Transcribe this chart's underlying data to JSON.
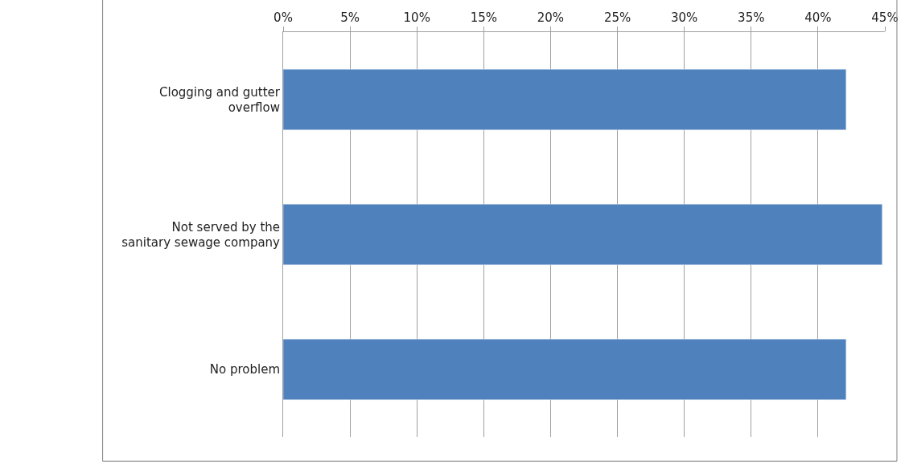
{
  "chart_data": {
    "type": "bar",
    "orientation": "horizontal",
    "categories": [
      "Clogging and gutter overflow",
      "Not served by the sanitary sewage company",
      "No problem"
    ],
    "values": [
      42.1,
      44.8,
      42.1
    ],
    "color": "#4f81bd",
    "xlim": [
      0,
      45
    ],
    "xticks": [
      {
        "value": 0,
        "label": "0%"
      },
      {
        "value": 5,
        "label": "5%"
      },
      {
        "value": 10,
        "label": "10%"
      },
      {
        "value": 15,
        "label": "15%"
      },
      {
        "value": 20,
        "label": "20%"
      },
      {
        "value": 25,
        "label": "25%"
      },
      {
        "value": 30,
        "label": "30%"
      },
      {
        "value": 35,
        "label": "35%"
      },
      {
        "value": 40,
        "label": "40%"
      },
      {
        "value": 45,
        "label": "45%"
      }
    ],
    "grid": "x"
  }
}
